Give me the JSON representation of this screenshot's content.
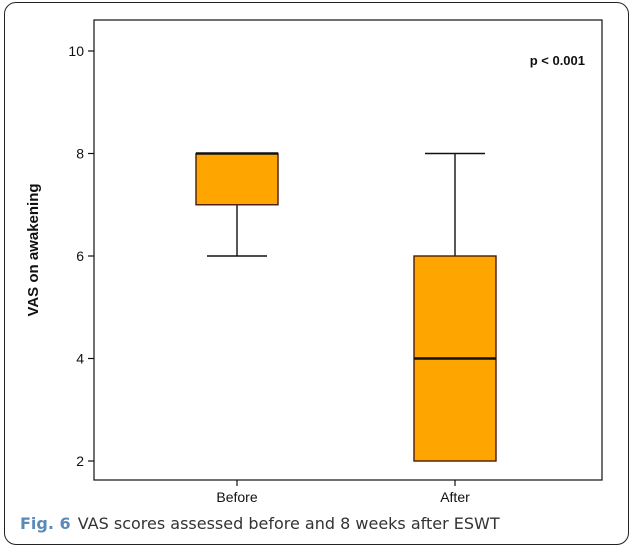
{
  "caption": {
    "label": "Fig. 6",
    "text": "VAS scores assessed before and 8 weeks after ESWT"
  },
  "colors": {
    "box_fill": "#ffa500",
    "box_stroke": "#4a1a0a",
    "frame": "#222222",
    "caption_label": "#5a8ab8"
  },
  "chart_data": {
    "type": "boxplot",
    "title": "",
    "xlabel": "",
    "ylabel": "VAS on awakening",
    "ylim": [
      1.8,
      10.2
    ],
    "yticks": [
      2,
      4,
      6,
      8,
      10
    ],
    "categories": [
      "Before",
      "After"
    ],
    "boxes": [
      {
        "category": "Before",
        "min": 6,
        "q1": 7,
        "median": 8,
        "q3": 8,
        "max": 8
      },
      {
        "category": "After",
        "min": 2,
        "q1": 2,
        "median": 4,
        "q3": 6,
        "max": 8
      }
    ],
    "annotation": "p < 0.001",
    "annotation_position": "top-right",
    "grid": false,
    "legend": "none"
  }
}
